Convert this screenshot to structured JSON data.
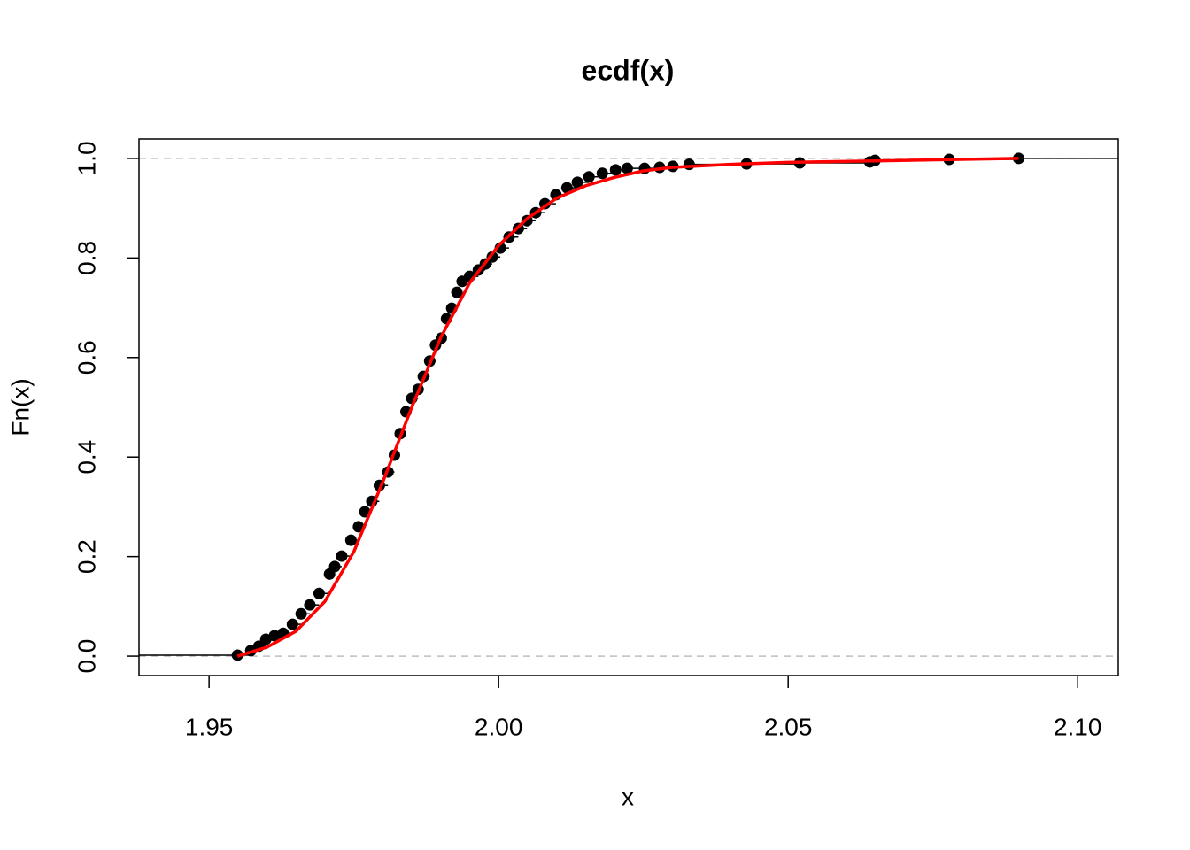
{
  "chart_data": {
    "type": "scatter",
    "title": "ecdf(x)",
    "xlabel": "x",
    "ylabel": "Fn(x)",
    "xlim": [
      1.9379,
      2.107
    ],
    "ylim": [
      -0.039,
      1.039
    ],
    "xticks": [
      1.95,
      {
        "value": 2.0,
        "label": "2.00"
      },
      2.05,
      {
        "value": 2.1,
        "label": "2.10"
      }
    ],
    "yticks": [
      {
        "value": 0,
        "label": "0.0"
      },
      0.2,
      0.4,
      0.6,
      0.8,
      {
        "value": 1,
        "label": "1.0"
      }
    ],
    "hlines": [
      0,
      1
    ],
    "hline_color": "#bebebe",
    "points": {
      "color": "#000000",
      "x": [
        1.9549,
        1.9572,
        1.9586,
        1.9598,
        1.9613,
        1.9628,
        1.9644,
        1.9659,
        1.9674,
        1.969,
        1.9708,
        1.9717,
        1.9729,
        1.9745,
        1.9758,
        1.9769,
        1.9781,
        1.9794,
        1.9809,
        1.982,
        1.983,
        1.984,
        1.985,
        1.9861,
        1.987,
        1.9881,
        1.9891,
        1.9901,
        1.991,
        1.9919,
        1.9928,
        1.9937,
        1.995,
        1.9965,
        1.9977,
        1.9989,
        2.0003,
        2.0018,
        2.0034,
        2.0049,
        2.0064,
        2.008,
        2.0099,
        2.0118,
        2.0136,
        2.0156,
        2.0179,
        2.0202,
        2.0222,
        2.0252,
        2.0278,
        2.0301,
        2.0329,
        2.0428,
        2.052,
        2.0641,
        2.065,
        2.0778,
        2.0898
      ],
      "y": [
        0.002,
        0.011,
        0.02,
        0.034,
        0.041,
        0.046,
        0.064,
        0.085,
        0.103,
        0.126,
        0.165,
        0.18,
        0.201,
        0.233,
        0.26,
        0.29,
        0.311,
        0.343,
        0.37,
        0.404,
        0.447,
        0.491,
        0.518,
        0.536,
        0.562,
        0.593,
        0.625,
        0.639,
        0.678,
        0.699,
        0.731,
        0.753,
        0.763,
        0.776,
        0.788,
        0.802,
        0.82,
        0.842,
        0.859,
        0.875,
        0.891,
        0.909,
        0.927,
        0.941,
        0.952,
        0.963,
        0.97,
        0.977,
        0.98,
        0.98,
        0.982,
        0.984,
        0.988,
        0.989,
        0.991,
        0.993,
        0.996,
        0.998,
        1.0
      ]
    },
    "curve": {
      "color": "#ff0000",
      "x": [
        1.9549,
        1.96,
        1.965,
        1.97,
        1.975,
        1.98,
        1.985,
        1.99,
        1.995,
        2.0,
        2.005,
        2.01,
        2.015,
        2.02,
        2.025,
        2.03,
        2.04,
        2.05,
        2.065,
        2.08,
        2.0898
      ],
      "y": [
        0.0,
        0.018,
        0.05,
        0.11,
        0.21,
        0.35,
        0.5,
        0.64,
        0.75,
        0.825,
        0.88,
        0.92,
        0.945,
        0.962,
        0.975,
        0.982,
        0.988,
        0.992,
        0.995,
        0.998,
        1.0
      ]
    }
  }
}
